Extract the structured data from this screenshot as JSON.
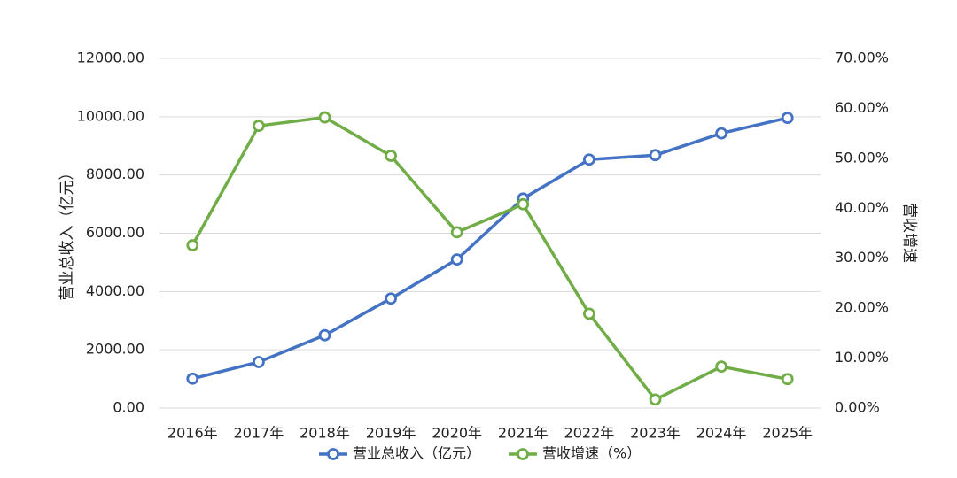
{
  "chart_data": {
    "type": "line",
    "categories": [
      "2016年",
      "2017年",
      "2018年",
      "2019年",
      "2020年",
      "2021年",
      "2022年",
      "2023年",
      "2024年",
      "2025年"
    ],
    "series": [
      {
        "name": "营业总收入（亿元）",
        "axis": "left",
        "color": "#4472C4",
        "values": [
          1010,
          1580,
          2500,
          3760,
          5100,
          7190,
          8530,
          8680,
          9430,
          9960
        ]
      },
      {
        "name": "营收增速（%）",
        "axis": "right",
        "color": "#70AD47",
        "values": [
          32.6,
          56.5,
          58.2,
          50.5,
          35.2,
          40.8,
          18.9,
          1.7,
          8.3,
          5.8
        ]
      }
    ],
    "y_left": {
      "label": "营业总收入（亿元）",
      "ylim": [
        0,
        12000
      ],
      "ticks": [
        "0.00",
        "2000.00",
        "4000.00",
        "6000.00",
        "8000.00",
        "10000.00",
        "12000.00"
      ]
    },
    "y_right": {
      "label": "营收增速",
      "ylim": [
        0,
        70
      ],
      "ticks": [
        "0.00%",
        "10.00%",
        "20.00%",
        "30.00%",
        "40.00%",
        "50.00%",
        "60.00%",
        "70.00%"
      ]
    },
    "grid": true,
    "legend_position": "bottom",
    "gridline_color": "#D9D9D9"
  }
}
